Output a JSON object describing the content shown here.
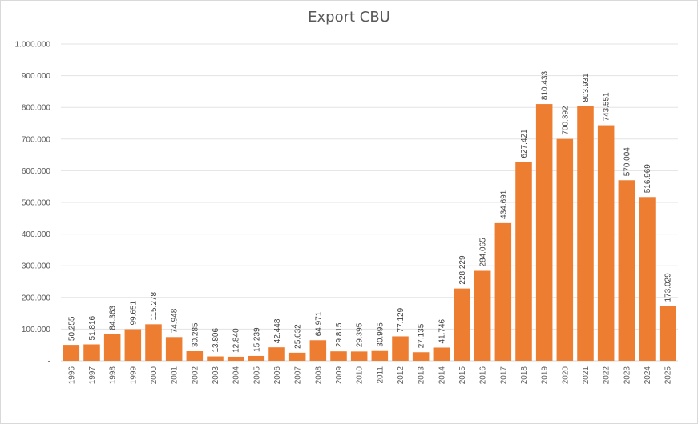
{
  "chart_data": {
    "type": "bar",
    "title": "Export CBU",
    "xlabel": "",
    "ylabel": "",
    "ylim": [
      0,
      1000000
    ],
    "y_ticks": [
      {
        "value": 0,
        "label": "-"
      },
      {
        "value": 100000,
        "label": "100.000"
      },
      {
        "value": 200000,
        "label": "200.000"
      },
      {
        "value": 300000,
        "label": "300.000"
      },
      {
        "value": 400000,
        "label": "400.000"
      },
      {
        "value": 500000,
        "label": "500.000"
      },
      {
        "value": 600000,
        "label": "600.000"
      },
      {
        "value": 700000,
        "label": "700.000"
      },
      {
        "value": 800000,
        "label": "800.000"
      },
      {
        "value": 900000,
        "label": "900.000"
      },
      {
        "value": 1000000,
        "label": "1.000.000"
      }
    ],
    "grid": true,
    "legend": "none",
    "bar_color": "#ed7d31",
    "categories": [
      "1996",
      "1997",
      "1998",
      "1999",
      "2000",
      "2001",
      "2002",
      "2003",
      "2004",
      "2005",
      "2006",
      "2007",
      "2008",
      "2009",
      "2010",
      "2011",
      "2012",
      "2013",
      "2014",
      "2015",
      "2016",
      "2017",
      "2018",
      "2019",
      "2020",
      "2021",
      "2022",
      "2023",
      "2024",
      "2025"
    ],
    "values": [
      50255,
      51816,
      84363,
      99651,
      115278,
      74948,
      30285,
      13806,
      12840,
      15239,
      42448,
      25632,
      64971,
      29815,
      29395,
      30995,
      77129,
      27135,
      41746,
      228229,
      284065,
      434691,
      627421,
      810433,
      700392,
      803931,
      743551,
      570004,
      516969,
      173029
    ],
    "data_labels": [
      "50.255",
      "51.816",
      "84.363",
      "99.651",
      "115.278",
      "74.948",
      "30.285",
      "13.806",
      "12.840",
      "15.239",
      "42.448",
      "25.632",
      "64.971",
      "29.815",
      "29.395",
      "30.995",
      "77.129",
      "27.135",
      "41.746",
      "228.229",
      "284.065",
      "434.691",
      "627.421",
      "810.433",
      "700.392",
      "803.931",
      "743.551",
      "570.004",
      "516.969",
      "173.029"
    ]
  }
}
